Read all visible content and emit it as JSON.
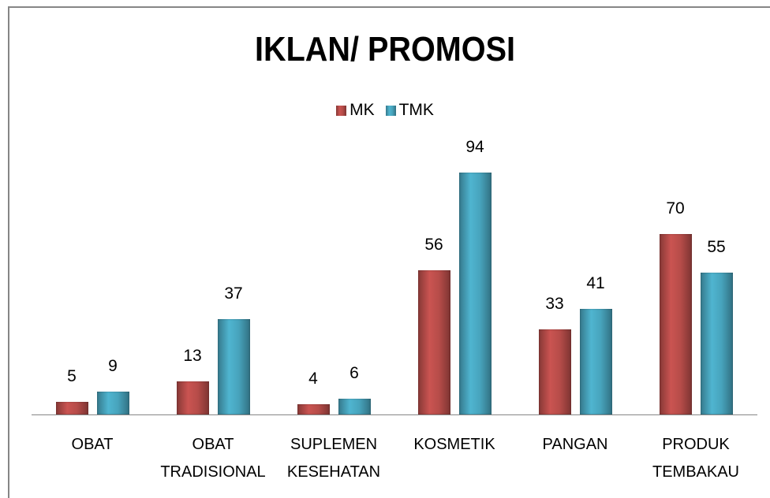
{
  "chart_data": {
    "type": "bar",
    "title": "IKLAN/ PROMOSI",
    "categories": [
      "OBAT",
      "OBAT TRADISIONAL",
      "SUPLEMEN KESEHATAN",
      "KOSMETIK",
      "PANGAN",
      "PRODUK TEMBAKAU"
    ],
    "series": [
      {
        "name": "MK",
        "color": "#c0504d",
        "values": [
          5,
          13,
          4,
          56,
          33,
          70
        ]
      },
      {
        "name": "TMK",
        "color": "#4bacc6",
        "values": [
          9,
          37,
          6,
          94,
          41,
          55
        ]
      }
    ],
    "legend": "top"
  }
}
